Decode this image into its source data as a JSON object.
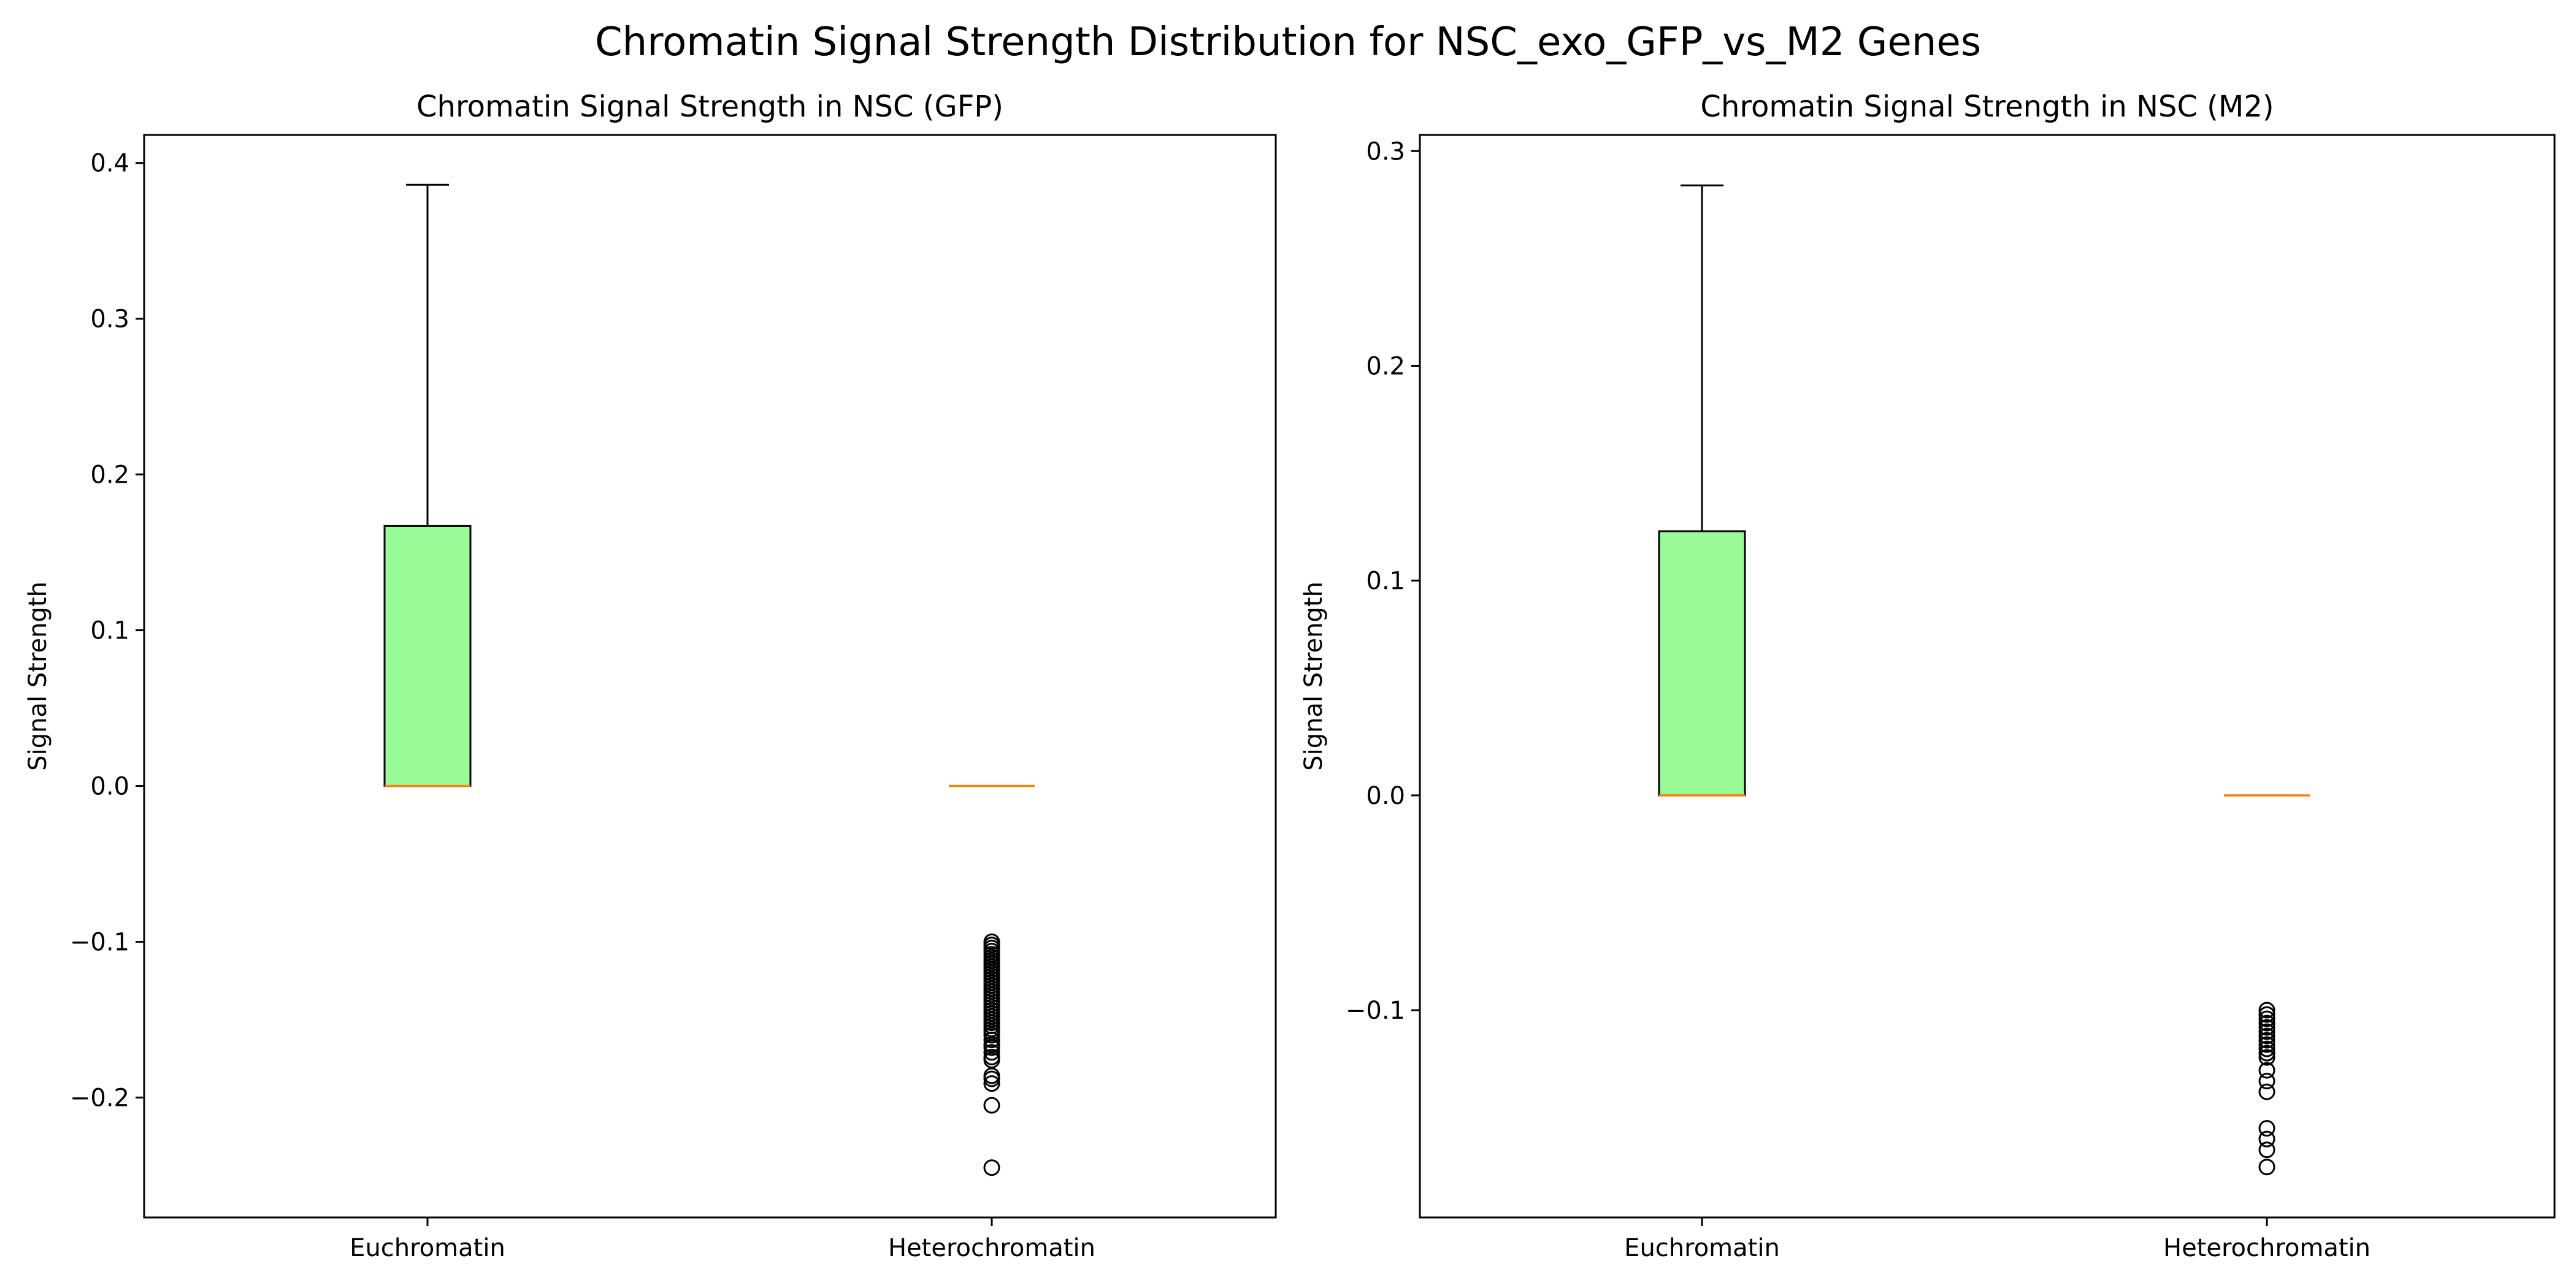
{
  "figure": {
    "suptitle": "Chromatin Signal Strength Distribution for NSC_exo_GFP_vs_M2 Genes"
  },
  "colors": {
    "box_fill": "#98fb98",
    "median": "#ff7f0e",
    "edge": "#000000",
    "background": "#ffffff"
  },
  "chart_data": [
    {
      "type": "box",
      "title": "Chromatin Signal Strength in NSC (GFP)",
      "xlabel": "",
      "ylabel": "Signal Strength",
      "ylim": [
        -0.277,
        0.418
      ],
      "yticks": [
        -0.2,
        -0.1,
        0.0,
        0.1,
        0.2,
        0.3,
        0.4
      ],
      "ytick_labels": [
        "−0.2",
        "−0.1",
        "0.0",
        "0.1",
        "0.2",
        "0.3",
        "0.4"
      ],
      "grid": false,
      "categories": [
        "Euchromatin",
        "Heterochromatin"
      ],
      "boxes": [
        {
          "name": "Euchromatin",
          "whisker_low": 0.0,
          "q1": 0.0,
          "median": 0.0,
          "q3": 0.167,
          "whisker_high": 0.386,
          "outliers": []
        },
        {
          "name": "Heterochromatin",
          "whisker_low": 0.0,
          "q1": 0.0,
          "median": 0.0,
          "q3": 0.0,
          "whisker_high": 0.0,
          "outliers": [
            -0.1,
            -0.102,
            -0.104,
            -0.106,
            -0.108,
            -0.11,
            -0.112,
            -0.114,
            -0.116,
            -0.118,
            -0.12,
            -0.122,
            -0.124,
            -0.126,
            -0.128,
            -0.13,
            -0.132,
            -0.134,
            -0.136,
            -0.138,
            -0.14,
            -0.142,
            -0.144,
            -0.146,
            -0.148,
            -0.15,
            -0.152,
            -0.154,
            -0.156,
            -0.158,
            -0.16,
            -0.163,
            -0.166,
            -0.168,
            -0.171,
            -0.174,
            -0.176,
            -0.186,
            -0.188,
            -0.191,
            -0.205,
            -0.245
          ]
        }
      ]
    },
    {
      "type": "box",
      "title": "Chromatin Signal Strength in NSC (M2)",
      "xlabel": "",
      "ylabel": "Signal Strength",
      "ylim": [
        -0.1965,
        0.3075
      ],
      "yticks": [
        -0.1,
        0.0,
        0.1,
        0.2,
        0.3
      ],
      "ytick_labels": [
        "−0.1",
        "0.0",
        "0.1",
        "0.2",
        "0.3"
      ],
      "grid": false,
      "categories": [
        "Euchromatin",
        "Heterochromatin"
      ],
      "boxes": [
        {
          "name": "Euchromatin",
          "whisker_low": 0.0,
          "q1": 0.0,
          "median": 0.0,
          "q3": 0.123,
          "whisker_high": 0.284,
          "outliers": []
        },
        {
          "name": "Heterochromatin",
          "whisker_low": 0.0,
          "q1": 0.0,
          "median": 0.0,
          "q3": 0.0,
          "whisker_high": 0.0,
          "outliers": [
            -0.1,
            -0.102,
            -0.104,
            -0.106,
            -0.108,
            -0.11,
            -0.112,
            -0.114,
            -0.116,
            -0.118,
            -0.12,
            -0.122,
            -0.128,
            -0.133,
            -0.138,
            -0.155,
            -0.16,
            -0.165,
            -0.173
          ]
        }
      ]
    }
  ]
}
